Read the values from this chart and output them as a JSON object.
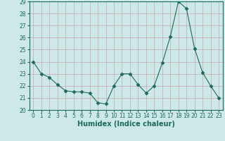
{
  "x": [
    0,
    1,
    2,
    3,
    4,
    5,
    6,
    7,
    8,
    9,
    10,
    11,
    12,
    13,
    14,
    15,
    16,
    17,
    18,
    19,
    20,
    21,
    22,
    23
  ],
  "y": [
    24.0,
    23.0,
    22.7,
    22.1,
    21.6,
    21.5,
    21.5,
    21.4,
    20.6,
    20.5,
    22.0,
    23.0,
    23.0,
    22.1,
    21.4,
    22.0,
    23.9,
    26.1,
    29.0,
    28.4,
    25.1,
    23.1,
    22.0,
    21.0
  ],
  "line_color": "#1a6b5a",
  "marker": "D",
  "marker_size": 2.5,
  "background_color": "#cde8e8",
  "grid_color": "#b0d0d0",
  "xlabel": "Humidex (Indice chaleur)",
  "ylim": [
    20,
    29
  ],
  "xlim": [
    -0.5,
    23.5
  ],
  "yticks": [
    20,
    21,
    22,
    23,
    24,
    25,
    26,
    27,
    28,
    29
  ],
  "xticks": [
    0,
    1,
    2,
    3,
    4,
    5,
    6,
    7,
    8,
    9,
    10,
    11,
    12,
    13,
    14,
    15,
    16,
    17,
    18,
    19,
    20,
    21,
    22,
    23
  ],
  "tick_fontsize": 5.5,
  "xlabel_fontsize": 7
}
